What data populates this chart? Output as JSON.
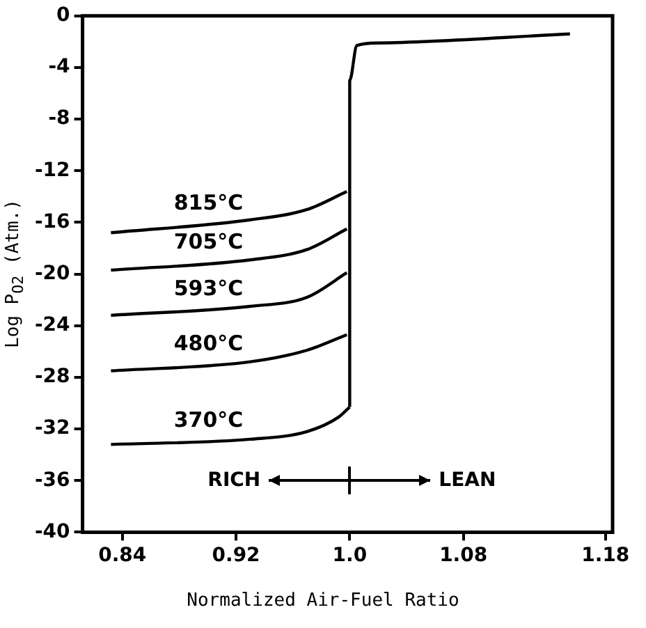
{
  "chart_data": {
    "type": "line",
    "xlabel": "Normalized Air-Fuel Ratio",
    "ylabel": "Log P$_{O2}$ (Atm.)",
    "xlim": [
      0.812,
      1.185
    ],
    "xticks": [
      0.84,
      0.92,
      {
        "value": 1.0,
        "label": "1.0"
      },
      1.08,
      1.18
    ],
    "ylim": [
      -40,
      0
    ],
    "yticks": [
      0,
      -4,
      -8,
      -12,
      -16,
      -20,
      -24,
      -28,
      -32,
      -36,
      -40
    ],
    "marker": "none",
    "line_style": "solid",
    "legend": false,
    "series": [
      {
        "name": "815°C",
        "color": "#000000",
        "x": [
          0.832,
          0.93,
          0.97,
          0.998
        ],
        "values": [
          -16.8,
          -15.8,
          -15.0,
          -13.6
        ]
      },
      {
        "name": "705°C",
        "color": "#000000",
        "x": [
          0.832,
          0.93,
          0.97,
          0.998
        ],
        "values": [
          -19.7,
          -18.9,
          -18.1,
          -16.5
        ]
      },
      {
        "name": "593°C",
        "color": "#000000",
        "x": [
          0.832,
          0.93,
          0.97,
          0.998
        ],
        "values": [
          -23.2,
          -22.5,
          -21.8,
          -19.9
        ]
      },
      {
        "name": "480°C",
        "color": "#000000",
        "x": [
          0.832,
          0.93,
          0.97,
          0.998
        ],
        "values": [
          -27.5,
          -26.8,
          -25.9,
          -24.7
        ]
      },
      {
        "name": "370°C",
        "color": "#000000",
        "x": [
          0.832,
          0.93,
          0.97,
          0.992,
          1.0
        ],
        "values": [
          -33.2,
          -32.8,
          -32.2,
          -31.1,
          -30.3
        ]
      },
      {
        "color": "#000000",
        "x": [
          1.0,
          1.0,
          1.005,
          1.02,
          1.155
        ],
        "values": [
          -30.3,
          -5.0,
          -2.3,
          -2.1,
          -1.4
        ]
      }
    ],
    "annotations": [
      "RICH",
      "LEAN"
    ]
  }
}
